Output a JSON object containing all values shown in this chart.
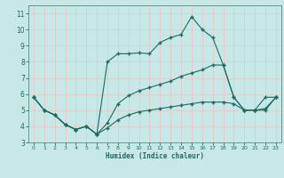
{
  "xlabel": "Humidex (Indice chaleur)",
  "xlim": [
    -0.5,
    23.5
  ],
  "ylim": [
    3,
    11.5
  ],
  "yticks": [
    3,
    4,
    5,
    6,
    7,
    8,
    9,
    10,
    11
  ],
  "xticks": [
    0,
    1,
    2,
    3,
    4,
    5,
    6,
    7,
    8,
    9,
    10,
    11,
    12,
    13,
    14,
    15,
    16,
    17,
    18,
    19,
    20,
    21,
    22,
    23
  ],
  "background_color": "#c8e8e8",
  "line_color": "#1a6b62",
  "grid_color": "#e8c8c8",
  "spine_color": "#5a8a82",
  "line1_x": [
    0,
    1,
    2,
    3,
    4,
    5,
    6,
    7,
    8,
    9,
    10,
    11,
    12,
    13,
    14,
    15,
    16,
    17,
    18,
    19,
    20,
    21,
    22,
    23
  ],
  "line1_y": [
    5.8,
    5.0,
    4.7,
    4.1,
    3.8,
    4.0,
    3.5,
    3.9,
    4.4,
    4.7,
    4.9,
    5.0,
    5.1,
    5.2,
    5.3,
    5.4,
    5.5,
    5.5,
    5.5,
    5.4,
    5.0,
    5.0,
    5.0,
    5.8
  ],
  "line2_x": [
    0,
    1,
    2,
    3,
    4,
    5,
    6,
    7,
    8,
    9,
    10,
    11,
    12,
    13,
    14,
    15,
    16,
    17,
    18,
    19,
    20,
    21,
    22,
    23
  ],
  "line2_y": [
    5.8,
    5.0,
    4.7,
    4.1,
    3.8,
    4.0,
    3.5,
    4.2,
    5.4,
    5.9,
    6.2,
    6.4,
    6.6,
    6.8,
    7.1,
    7.3,
    7.5,
    7.8,
    7.8,
    5.8,
    5.0,
    5.0,
    5.1,
    5.8
  ],
  "line3_x": [
    0,
    1,
    2,
    3,
    4,
    5,
    6,
    7,
    8,
    9,
    10,
    11,
    12,
    13,
    14,
    15,
    16,
    17,
    18,
    19,
    20,
    21,
    22,
    23
  ],
  "line3_y": [
    5.8,
    5.0,
    4.7,
    4.1,
    3.8,
    4.0,
    3.5,
    8.0,
    8.5,
    8.5,
    8.55,
    8.5,
    9.2,
    9.5,
    9.7,
    10.8,
    10.0,
    9.5,
    7.8,
    5.8,
    5.0,
    5.0,
    5.8,
    5.8
  ]
}
